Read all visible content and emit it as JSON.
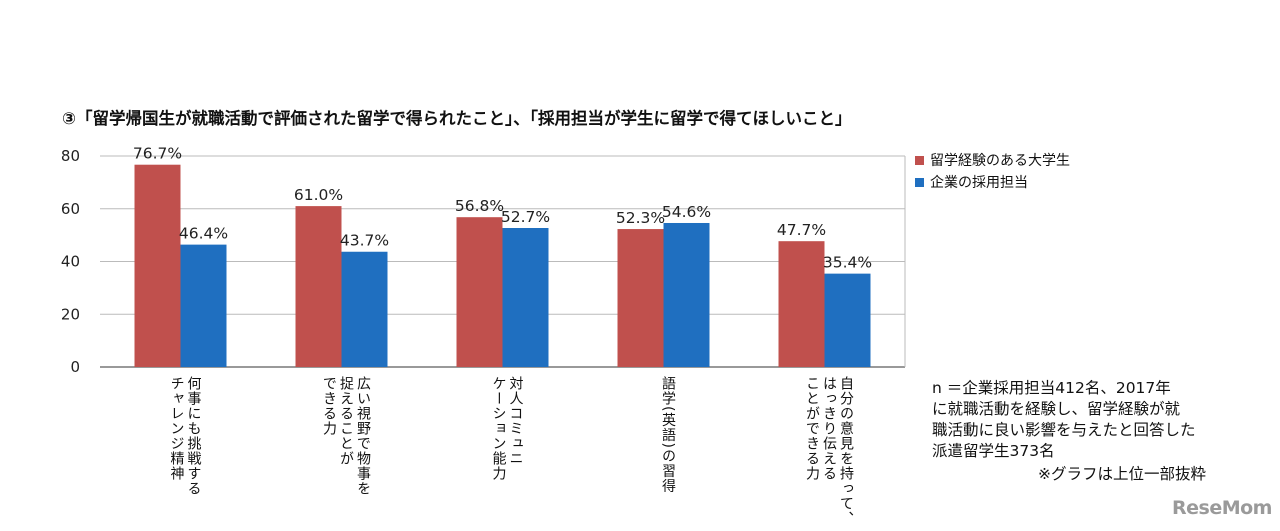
{
  "chart_data": {
    "type": "bar",
    "title": "③「留学帰国生が就職活動で評価された留学で得られたこと」、「採用担当が学生に留学で得てほしいこと」",
    "categories": [
      "何事にも挑戦する\nチャレンジ精神",
      "広い視野で物事を\n捉えることが\nできる力",
      "対人コミュニ\nケーション能力",
      "語学(英語)の習得",
      "自分の意見を持って、\nはっきり伝える\nことができる力"
    ],
    "series": [
      {
        "name": "留学経験のある大学生",
        "values": [
          76.7,
          61.0,
          56.8,
          52.3,
          47.7
        ],
        "labels": [
          "76.7%",
          "61.0%",
          "56.8%",
          "52.3%",
          "47.7%"
        ],
        "color": "#c0504d"
      },
      {
        "name": "企業の採用担当",
        "values": [
          46.4,
          43.7,
          52.7,
          54.6,
          35.4
        ],
        "labels": [
          "46.4%",
          "43.7%",
          "52.7%",
          "54.6%",
          "35.4%"
        ],
        "color": "#1f6fc0"
      }
    ],
    "ylim": [
      0,
      80
    ],
    "yticks": [
      "0",
      "20",
      "40",
      "60",
      "80"
    ],
    "grid": true,
    "legend": "right"
  },
  "note": "n ＝企業採用担当412名、2017年\nに就職活動を経験し、留学経験が就\n職活動に良い影響を与えたと回答した\n派遣留学生373名",
  "note2": "※グラフは上位一部抜粋",
  "logo": "ReseMom"
}
